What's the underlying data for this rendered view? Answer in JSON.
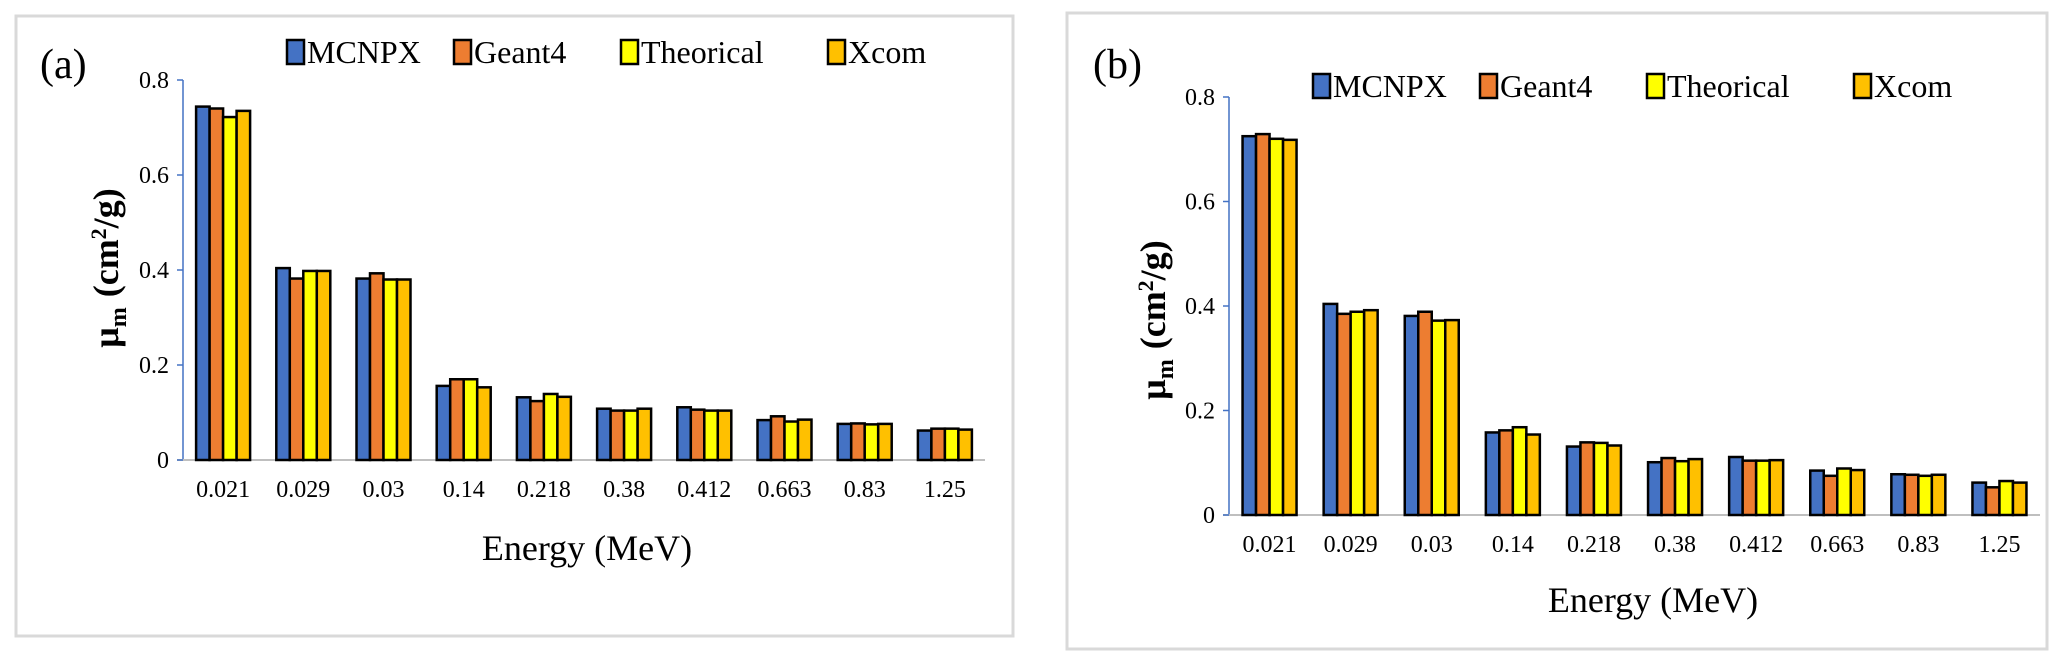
{
  "chart_data": [
    {
      "type": "bar",
      "panel_label": "(a)",
      "categories": [
        "0.021",
        "0.029",
        "0.03",
        "0.14",
        "0.218",
        "0.38",
        "0.412",
        "0.663",
        "0.83",
        "1.25"
      ],
      "series": [
        {
          "name": "MCNPX",
          "color": "#4472C4",
          "values": [
            0.744,
            0.404,
            0.382,
            0.156,
            0.132,
            0.108,
            0.111,
            0.084,
            0.076,
            0.062
          ]
        },
        {
          "name": "Geant4",
          "color": "#ED7D31",
          "values": [
            0.74,
            0.382,
            0.393,
            0.17,
            0.124,
            0.104,
            0.106,
            0.092,
            0.077,
            0.066
          ]
        },
        {
          "name": "Theorical",
          "color": "#FFFF00",
          "values": [
            0.722,
            0.398,
            0.38,
            0.17,
            0.139,
            0.104,
            0.104,
            0.081,
            0.075,
            0.066
          ]
        },
        {
          "name": "Xcom",
          "color": "#FFC000",
          "values": [
            0.735,
            0.398,
            0.38,
            0.153,
            0.133,
            0.108,
            0.104,
            0.085,
            0.076,
            0.064
          ]
        }
      ],
      "xlabel": "Energy (MeV)",
      "ylabel": {
        "symbol": "μ",
        "sub": "m",
        "unit_pre": "(cm",
        "sup": "2",
        "unit_post": "/g)"
      },
      "ylim": [
        0,
        0.8
      ],
      "yticks": [
        "0",
        "0.2",
        "0.4",
        "0.6",
        "0.8"
      ],
      "grid": false,
      "legend": "top"
    },
    {
      "type": "bar",
      "panel_label": "(b)",
      "categories": [
        "0.021",
        "0.029",
        "0.03",
        "0.14",
        "0.218",
        "0.38",
        "0.412",
        "0.663",
        "0.83",
        "1.25"
      ],
      "series": [
        {
          "name": "MCNPX",
          "color": "#4472C4",
          "values": [
            0.725,
            0.404,
            0.381,
            0.158,
            0.131,
            0.101,
            0.111,
            0.085,
            0.078,
            0.062
          ]
        },
        {
          "name": "Geant4",
          "color": "#ED7D31",
          "values": [
            0.729,
            0.385,
            0.389,
            0.162,
            0.139,
            0.109,
            0.104,
            0.075,
            0.077,
            0.053
          ]
        },
        {
          "name": "Theorical",
          "color": "#FFFF00",
          "values": [
            0.72,
            0.389,
            0.372,
            0.168,
            0.138,
            0.103,
            0.104,
            0.089,
            0.075,
            0.065
          ]
        },
        {
          "name": "Xcom",
          "color": "#FFC000",
          "values": [
            0.718,
            0.392,
            0.373,
            0.154,
            0.133,
            0.107,
            0.105,
            0.086,
            0.077,
            0.062
          ]
        }
      ],
      "xlabel": "Energy (MeV)",
      "ylabel": {
        "symbol": "μ",
        "sub": "m",
        "unit_pre": "(cm",
        "sup": "2",
        "unit_post": "/g)"
      },
      "ylim": [
        0,
        0.8
      ],
      "yticks": [
        "0",
        "0.2",
        "0.4",
        "0.6",
        "0.8"
      ],
      "grid": false,
      "legend": "top"
    }
  ]
}
